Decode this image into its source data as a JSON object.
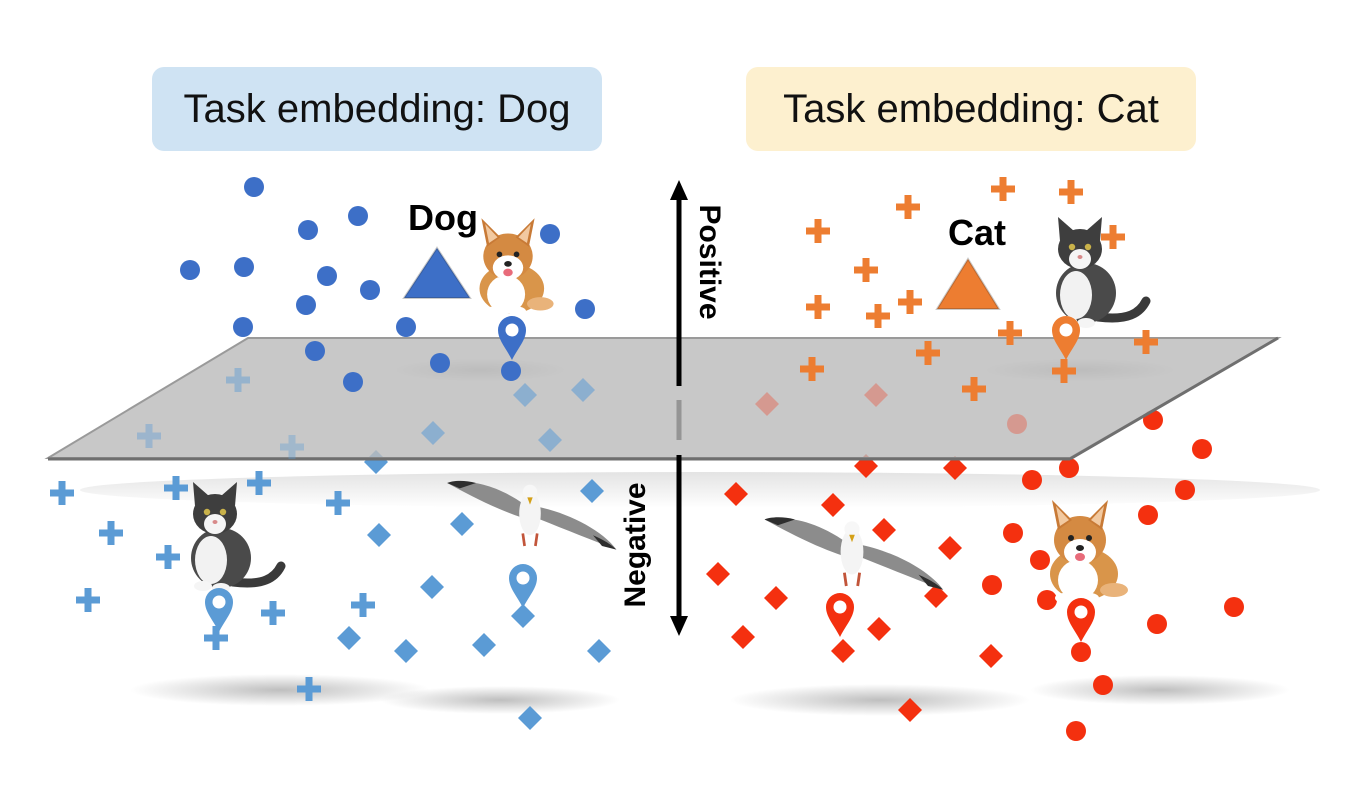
{
  "task_boxes": {
    "dog": {
      "label": "Task embedding: Dog",
      "color": "#cfe3f3"
    },
    "cat": {
      "label": "Task embedding: Cat",
      "color": "#fdf0cf"
    }
  },
  "labels": {
    "dog_prototype": "Dog",
    "cat_prototype": "Cat",
    "positive": "Positive",
    "negative": "Negative"
  },
  "colors": {
    "dog_dark": "#3d6fc7",
    "dog_light": "#5b9bd5",
    "cat_orange": "#ed7d31",
    "cat_red": "#f4300f",
    "plane": "#c4c4c4",
    "arrow": "#000000"
  },
  "icons": {
    "dog_photo": "corgi-dog-image",
    "cat_photo": "cat-image",
    "bird_photo": "seagull-image",
    "marker": "map-pin-icon",
    "prototype": "triangle-icon"
  }
}
